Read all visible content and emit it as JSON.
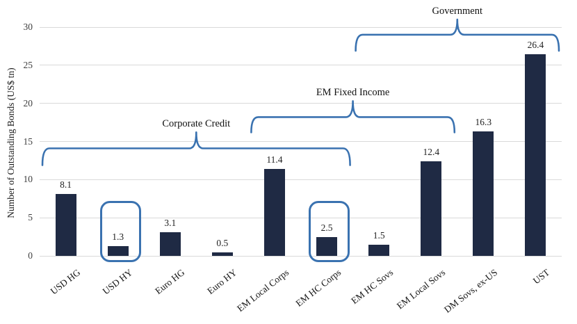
{
  "chart_data": {
    "type": "bar",
    "title": "",
    "xlabel": "",
    "ylabel": "Number of Outstanding Bonds (US$ tn)",
    "ylim": [
      0,
      30
    ],
    "ytick_step": 5,
    "grid": true,
    "legend": "none",
    "categories": [
      "USD HG",
      "USD HY",
      "Euro HG",
      "Euro HY",
      "EM Local Corps",
      "EM HC Corps",
      "EM HC Sovs",
      "EM Local Sovs",
      "DM Sovs, ex-US",
      "UST"
    ],
    "values": [
      8.1,
      1.3,
      3.1,
      0.5,
      11.4,
      2.5,
      1.5,
      12.4,
      16.3,
      26.4
    ],
    "value_labels": [
      "8.1",
      "1.3",
      "3.1",
      "0.5",
      "11.4",
      "2.5",
      "1.5",
      "12.4",
      "16.3",
      "26.4"
    ],
    "highlighted_categories": [
      "USD HY",
      "EM HC Corps"
    ],
    "group_annotations": [
      {
        "label": "Corporate Credit",
        "start": "USD HG",
        "end": "EM HC Corps",
        "level": 14.1,
        "tip": 16.2,
        "end_drop": 11.9
      },
      {
        "label": "EM Fixed Income",
        "start": "EM Local Corps",
        "end": "EM Local Sovs",
        "level": 18.2,
        "tip": 20.3,
        "end_drop": 16.2
      },
      {
        "label": "Government",
        "start": "EM HC Sovs",
        "end": "UST",
        "level": 29.0,
        "tip": 31.0,
        "end_drop": 26.9
      }
    ],
    "colors": {
      "bar": "#1f2a44",
      "annotation": "#3a72b0",
      "gridline": "#d9d9d9",
      "text": "#1a1a1a"
    }
  }
}
